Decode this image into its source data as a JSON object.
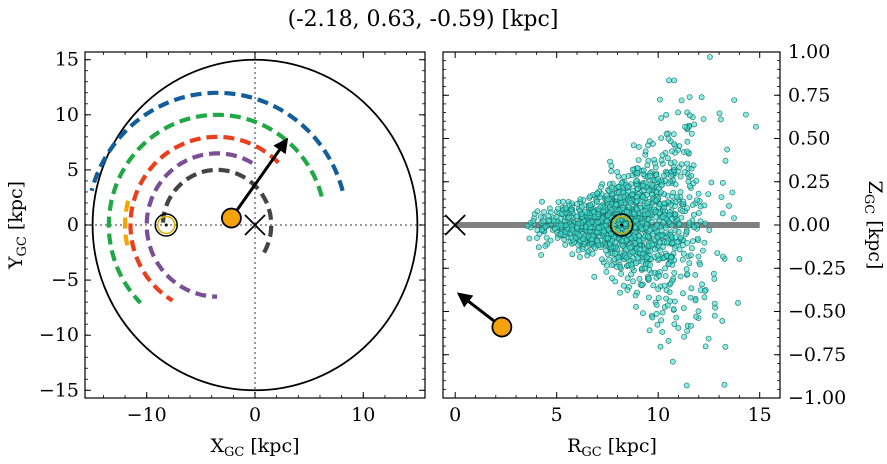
{
  "figure_title": "(-2.18, 0.63, -0.59) [kpc]",
  "chart_data": [
    {
      "type": "scatter",
      "panel": "left",
      "xlabel": "X<sub>GC</sub> [kpc]",
      "xlabel_main": "X",
      "xlabel_sub": "GC",
      "xlabel_unit": " [kpc]",
      "ylabel_main": "Y",
      "ylabel_sub": "GC",
      "ylabel_unit": " [kpc]",
      "xlim": [
        -15.7,
        15.7
      ],
      "ylim": [
        -15.7,
        15.7
      ],
      "xticks": [
        -10,
        0,
        10
      ],
      "xtick_labels": [
        "−10",
        "0",
        "10"
      ],
      "yticks": [
        -15,
        -10,
        -5,
        0,
        5,
        10,
        15
      ],
      "ytick_labels": [
        "−15",
        "−10",
        "−5",
        "0",
        "5",
        "10",
        "15"
      ],
      "grid": false,
      "boundary_circle_radius": 15,
      "galactic_center": [
        0,
        0
      ],
      "sun_position": [
        -8.2,
        0
      ],
      "object_position": [
        -2.18,
        0.63
      ],
      "velocity_arrow_end": [
        2.9,
        7.7
      ],
      "spiral_arms": [
        {
          "color": "#444444",
          "radius": 5,
          "angle_start": -30,
          "angle_end": 180
        },
        {
          "color": "#7a4f96",
          "radius": 6.5,
          "angle_start": 60,
          "angle_end": 270
        },
        {
          "color": "#e8401c",
          "radius": 8,
          "angle_start": 45,
          "angle_end": 240
        },
        {
          "color": "#1fa845",
          "radius": 10,
          "angle_start": 15,
          "angle_end": 225
        },
        {
          "color": "#f5a500",
          "radius": 8.5,
          "angle_start": 165,
          "angle_end": 195
        },
        {
          "color": "#115e9b",
          "radius": 12,
          "angle_start": 15,
          "angle_end": 165
        }
      ],
      "arm_origin": [
        -3.5,
        0
      ]
    },
    {
      "type": "scatter",
      "panel": "right",
      "xlabel_main": "R",
      "xlabel_sub": "GC",
      "xlabel_unit": " [kpc]",
      "ylabel_main": "Z",
      "ylabel_sub": "GC",
      "ylabel_unit": " [kpc]",
      "xlim": [
        -0.6,
        16
      ],
      "ylim": [
        -1.0,
        1.0
      ],
      "xticks": [
        0,
        5,
        10,
        15
      ],
      "xtick_labels": [
        "0",
        "5",
        "10",
        "15"
      ],
      "yticks": [
        -1.0,
        -0.75,
        -0.5,
        -0.25,
        0.0,
        0.25,
        0.5,
        0.75,
        1.0
      ],
      "ytick_labels": [
        "−1.00",
        "−0.75",
        "−0.50",
        "−0.25",
        "0.00",
        "0.25",
        "0.50",
        "0.75",
        "1.00"
      ],
      "grid": false,
      "plane_line": {
        "x": [
          0,
          15
        ],
        "y": 0,
        "color": "#808080"
      },
      "galactic_center": [
        0,
        0
      ],
      "sun_position": [
        8.2,
        0
      ],
      "object_position": [
        2.3,
        -0.59
      ],
      "velocity_arrow_end": [
        0.2,
        -0.4
      ],
      "star_cloud": {
        "color": "#40e0d0",
        "edge": "#1a6e68",
        "center": [
          8.5,
          0
        ],
        "count": 1500
      }
    }
  ]
}
